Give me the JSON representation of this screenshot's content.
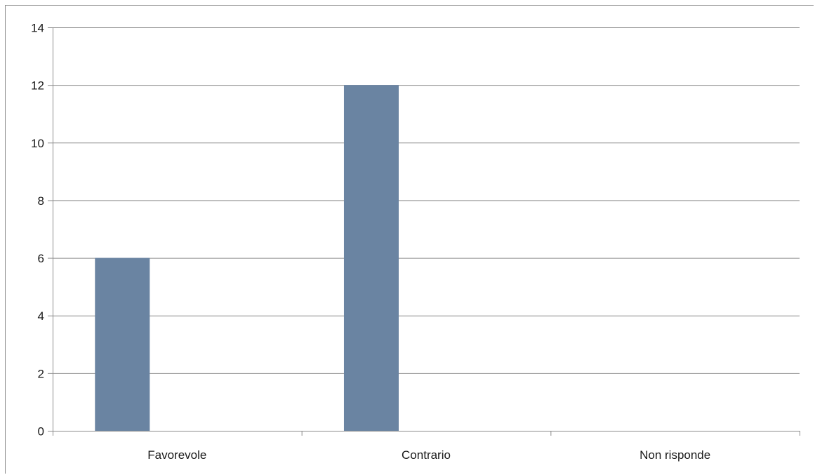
{
  "chart_data": {
    "type": "bar",
    "title": "",
    "xlabel": "",
    "ylabel": "",
    "categories": [
      "Favorevole",
      "Contrario",
      "Non risponde"
    ],
    "values": [
      6,
      12,
      0
    ],
    "ylim": [
      0,
      14
    ],
    "yticks": [
      0,
      2,
      4,
      6,
      8,
      10,
      12,
      14
    ],
    "ytick_labels": [
      "0",
      "2",
      "4",
      "6",
      "8",
      "10",
      "12",
      "14"
    ],
    "grid": true,
    "legend": "none",
    "bar_color": "#6a84a2",
    "grid_color": "#8c8c8c"
  }
}
